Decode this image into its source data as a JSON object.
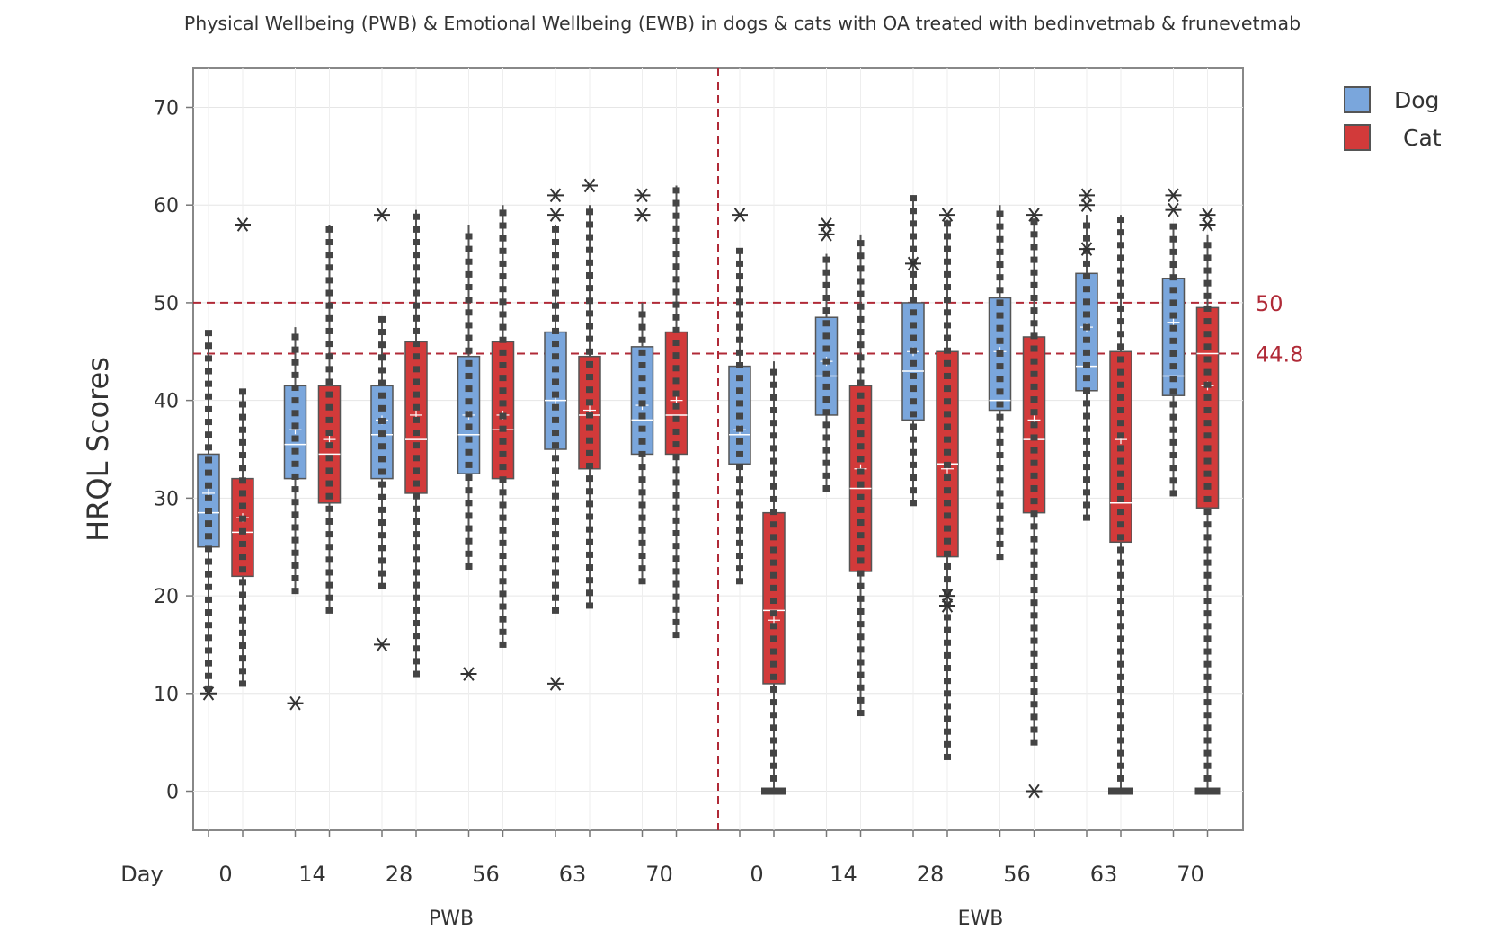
{
  "chart_data": {
    "type": "boxplot",
    "title": "Physical Wellbeing (PWB) & Emotional Wellbeing (EWB) in dogs & cats with OA treated with bedinvetmab & frunevetmab",
    "ylabel": "HRQL Scores",
    "xlabel": "Day",
    "ylim": [
      -4,
      74
    ],
    "yticks": [
      0,
      10,
      20,
      30,
      40,
      50,
      60,
      70
    ],
    "groups": [
      "PWB",
      "EWB"
    ],
    "categories": [
      "0",
      "14",
      "28",
      "56",
      "63",
      "70"
    ],
    "series": [
      {
        "name": "Dog",
        "color": "#7aa6dc"
      },
      {
        "name": "Cat",
        "color": "#d23a3a"
      }
    ],
    "reference_lines": [
      {
        "value": 50,
        "label": "50",
        "color": "#b02a37"
      },
      {
        "value": 44.8,
        "label": "44.8",
        "color": "#b02a37"
      }
    ],
    "boxes": [
      {
        "group": "PWB",
        "day": "0",
        "series": "Dog",
        "whisker_low": 10.5,
        "q1": 25,
        "median": 28.5,
        "mean": 30.5,
        "q3": 34.5,
        "whisker_high": 47,
        "outliers": [
          10
        ]
      },
      {
        "group": "PWB",
        "day": "0",
        "series": "Cat",
        "whisker_low": 11,
        "q1": 22,
        "median": 26.5,
        "mean": 28,
        "q3": 32,
        "whisker_high": 41,
        "outliers": [
          58
        ]
      },
      {
        "group": "PWB",
        "day": "14",
        "series": "Dog",
        "whisker_low": 20.5,
        "q1": 32,
        "median": 35.5,
        "mean": 37,
        "q3": 41.5,
        "whisker_high": 47.5,
        "outliers": [
          9
        ]
      },
      {
        "group": "PWB",
        "day": "14",
        "series": "Cat",
        "whisker_low": 18.5,
        "q1": 29.5,
        "median": 34.5,
        "mean": 36,
        "q3": 41.5,
        "whisker_high": 58,
        "outliers": []
      },
      {
        "group": "PWB",
        "day": "28",
        "series": "Dog",
        "whisker_low": 21,
        "q1": 32,
        "median": 36.5,
        "mean": 38,
        "q3": 41.5,
        "whisker_high": 48.5,
        "outliers": [
          15,
          59
        ]
      },
      {
        "group": "PWB",
        "day": "28",
        "series": "Cat",
        "whisker_low": 12,
        "q1": 30.5,
        "median": 36,
        "mean": 38.5,
        "q3": 46,
        "whisker_high": 59.5,
        "outliers": []
      },
      {
        "group": "PWB",
        "day": "56",
        "series": "Dog",
        "whisker_low": 23,
        "q1": 32.5,
        "median": 36.5,
        "mean": 38.5,
        "q3": 44.5,
        "whisker_high": 58,
        "outliers": [
          12
        ]
      },
      {
        "group": "PWB",
        "day": "56",
        "series": "Cat",
        "whisker_low": 15,
        "q1": 32,
        "median": 37,
        "mean": 38.5,
        "q3": 46,
        "whisker_high": 60,
        "outliers": []
      },
      {
        "group": "PWB",
        "day": "63",
        "series": "Dog",
        "whisker_low": 18.5,
        "q1": 35,
        "median": 40,
        "mean": 40,
        "q3": 47,
        "whisker_high": 58,
        "outliers": [
          11,
          59,
          61
        ]
      },
      {
        "group": "PWB",
        "day": "63",
        "series": "Cat",
        "whisker_low": 19,
        "q1": 33,
        "median": 38.5,
        "mean": 39,
        "q3": 44.5,
        "whisker_high": 60,
        "outliers": [
          62
        ]
      },
      {
        "group": "PWB",
        "day": "70",
        "series": "Dog",
        "whisker_low": 21.5,
        "q1": 34.5,
        "median": 38,
        "mean": 39.5,
        "q3": 45.5,
        "whisker_high": 50,
        "outliers": [
          59,
          61
        ]
      },
      {
        "group": "PWB",
        "day": "70",
        "series": "Cat",
        "whisker_low": 16,
        "q1": 34.5,
        "median": 38.5,
        "mean": 40,
        "q3": 47,
        "whisker_high": 62,
        "outliers": []
      },
      {
        "group": "EWB",
        "day": "0",
        "series": "Dog",
        "whisker_low": 21.5,
        "q1": 33.5,
        "median": 36.5,
        "mean": 37,
        "q3": 43.5,
        "whisker_high": 55.5,
        "outliers": [
          59
        ]
      },
      {
        "group": "EWB",
        "day": "0",
        "series": "Cat",
        "whisker_low": 0,
        "q1": 11,
        "median": 18.5,
        "mean": 17.5,
        "q3": 28.5,
        "whisker_high": 44,
        "outliers": []
      },
      {
        "group": "EWB",
        "day": "14",
        "series": "Dog",
        "whisker_low": 31,
        "q1": 38.5,
        "median": 42.5,
        "mean": 44,
        "q3": 48.5,
        "whisker_high": 55,
        "outliers": [
          57,
          58
        ]
      },
      {
        "group": "EWB",
        "day": "14",
        "series": "Cat",
        "whisker_low": 8,
        "q1": 22.5,
        "median": 31,
        "mean": 33,
        "q3": 41.5,
        "whisker_high": 57,
        "outliers": []
      },
      {
        "group": "EWB",
        "day": "28",
        "series": "Dog",
        "whisker_low": 29.5,
        "q1": 38,
        "median": 43,
        "mean": 45,
        "q3": 50,
        "whisker_high": 61,
        "outliers": [
          54
        ]
      },
      {
        "group": "EWB",
        "day": "28",
        "series": "Cat",
        "whisker_low": 3.5,
        "q1": 24,
        "median": 33.5,
        "mean": 33,
        "q3": 45,
        "whisker_high": 58.5,
        "outliers": [
          19,
          20,
          59
        ]
      },
      {
        "group": "EWB",
        "day": "56",
        "series": "Dog",
        "whisker_low": 24,
        "q1": 39,
        "median": 40,
        "mean": 45,
        "q3": 50.5,
        "whisker_high": 60,
        "outliers": []
      },
      {
        "group": "EWB",
        "day": "56",
        "series": "Cat",
        "whisker_low": 5,
        "q1": 28.5,
        "median": 36,
        "mean": 38,
        "q3": 46.5,
        "whisker_high": 58.5,
        "outliers": [
          0,
          59
        ]
      },
      {
        "group": "EWB",
        "day": "63",
        "series": "Dog",
        "whisker_low": 28,
        "q1": 41,
        "median": 43.5,
        "mean": 47.5,
        "q3": 53,
        "whisker_high": 59,
        "outliers": [
          60,
          61,
          55.5
        ]
      },
      {
        "group": "EWB",
        "day": "63",
        "series": "Cat",
        "whisker_low": 0,
        "q1": 25.5,
        "median": 29.5,
        "mean": 36,
        "q3": 45,
        "whisker_high": 59,
        "outliers": []
      },
      {
        "group": "EWB",
        "day": "70",
        "series": "Dog",
        "whisker_low": 30.5,
        "q1": 40.5,
        "median": 42.5,
        "mean": 48,
        "q3": 52.5,
        "whisker_high": 58,
        "outliers": [
          59.5,
          61
        ]
      },
      {
        "group": "EWB",
        "day": "70",
        "series": "Cat",
        "whisker_low": 0,
        "q1": 29,
        "median": 44.8,
        "mean": 41.5,
        "q3": 49.5,
        "whisker_high": 57,
        "outliers": [
          59,
          58
        ]
      }
    ]
  },
  "legend": {
    "dog_label": "Dog",
    "cat_label": "Cat",
    "dog_color": "#7aa6dc",
    "cat_color": "#d23a3a"
  }
}
